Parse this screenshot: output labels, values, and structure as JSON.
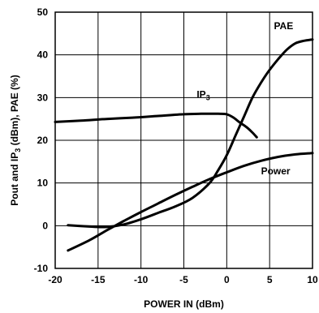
{
  "chart_data": {
    "type": "line",
    "xlabel": "POWER IN (dBm)",
    "ylabel": {
      "before": "Pout and IP",
      "sub": "3",
      "after": " (dBm), PAE (%)"
    },
    "xlim": [
      -20,
      10
    ],
    "ylim": [
      -10,
      50
    ],
    "xticks": [
      -20,
      -15,
      -10,
      -5,
      0,
      5,
      10
    ],
    "yticks": [
      -10,
      0,
      10,
      20,
      30,
      40,
      50
    ],
    "grid": true,
    "series": [
      {
        "name": "PAE",
        "x": [
          -18.5,
          -16,
          -14,
          -12,
          -10,
          -8,
          -6,
          -4,
          -2,
          -1,
          0,
          1,
          2,
          3,
          4,
          5,
          6,
          7,
          8,
          9,
          10
        ],
        "y": [
          0.1,
          -0.2,
          -0.3,
          0.3,
          1.5,
          3,
          4.5,
          6.5,
          10,
          13,
          16.5,
          21,
          25.5,
          30,
          33.5,
          36.5,
          39,
          41.2,
          42.7,
          43.3,
          43.6
        ]
      },
      {
        "name": "Power",
        "x": [
          -18.5,
          -16,
          -14,
          -12,
          -10,
          -8,
          -6,
          -4,
          -2,
          0,
          2,
          4,
          6,
          8,
          10
        ],
        "y": [
          -5.8,
          -3.4,
          -1.1,
          1.1,
          3.2,
          5.2,
          7.2,
          9.1,
          10.9,
          12.5,
          14,
          15.2,
          16.1,
          16.7,
          17
        ]
      },
      {
        "name": "IP3",
        "x": [
          -20,
          -17,
          -14,
          -11,
          -8,
          -5,
          -3,
          -1,
          0,
          0.8,
          1.5,
          2.3,
          3,
          3.5
        ],
        "y": [
          24.3,
          24.6,
          25,
          25.3,
          25.7,
          26.1,
          26.2,
          26.2,
          26.1,
          25.3,
          24.2,
          23.1,
          21.8,
          20.7
        ]
      }
    ],
    "annotations": [
      {
        "text": "PAE",
        "x": 5.5,
        "y": 46
      },
      {
        "text": "Power",
        "x": 4,
        "y": 12
      },
      {
        "text": "IP",
        "sub": "3",
        "x": -3.5,
        "y": 30
      }
    ]
  }
}
